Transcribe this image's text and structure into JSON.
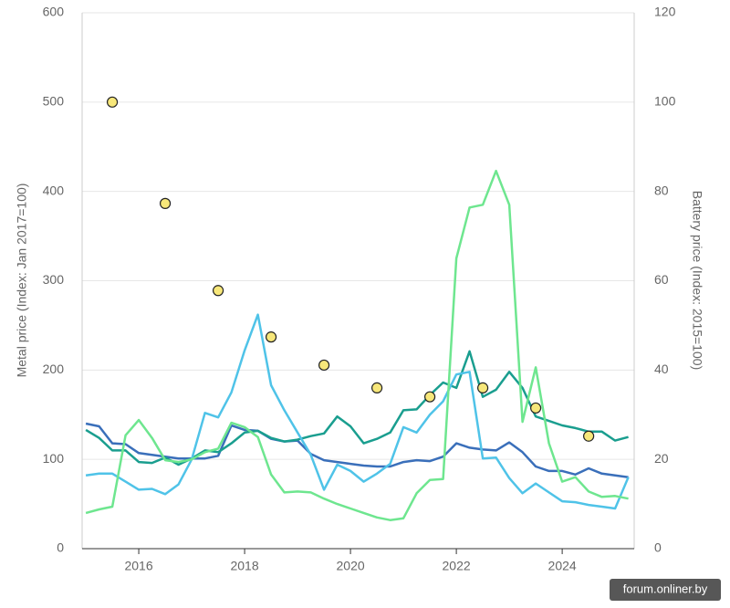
{
  "chart_data": {
    "type": "line",
    "y_label": "Metal price (Index: Jan 2017=100)",
    "y2_label": "Battery price (Index: 2015=100)",
    "watermark": "forum.onliner.by",
    "xlim": [
      2014.93,
      2025.36
    ],
    "xticks": [
      2016,
      2018,
      2020,
      2022,
      2024
    ],
    "ylim": [
      0,
      600
    ],
    "yticks": [
      0,
      100,
      200,
      300,
      400,
      500,
      600
    ],
    "y2lim": [
      0,
      120
    ],
    "y2ticks": [
      0,
      20,
      40,
      60,
      80,
      100,
      120
    ],
    "grid": true,
    "x": [
      2015,
      2015.25,
      2015.5,
      2015.75,
      2016,
      2016.25,
      2016.5,
      2016.75,
      2017,
      2017.25,
      2017.5,
      2017.75,
      2018,
      2018.25,
      2018.5,
      2018.75,
      2019,
      2019.25,
      2019.5,
      2019.75,
      2020,
      2020.25,
      2020.5,
      2020.75,
      2021,
      2021.25,
      2021.5,
      2021.75,
      2022,
      2022.25,
      2022.5,
      2022.75,
      2023,
      2023.25,
      2023.5,
      2023.75,
      2024,
      2024.25,
      2024.5,
      2024.75,
      2025,
      2025.25
    ],
    "series": [
      {
        "color": "#3a6fba",
        "values": [
          140,
          137,
          118,
          117,
          107,
          105,
          103,
          101,
          101,
          101,
          104,
          138,
          133,
          132,
          123,
          120,
          121,
          106,
          99,
          97,
          95,
          93,
          92,
          92,
          97,
          99,
          98,
          103,
          118,
          113,
          111,
          110,
          119,
          108,
          92,
          87,
          87,
          83,
          90,
          84,
          82,
          80
        ]
      },
      {
        "color": "#1a9e8f",
        "values": [
          133,
          124,
          110,
          110,
          97,
          96,
          102,
          94,
          101,
          110,
          108,
          118,
          130,
          132,
          124,
          120,
          122,
          126,
          129,
          148,
          137,
          118,
          123,
          130,
          155,
          156,
          172,
          186,
          180,
          221,
          170,
          178,
          198,
          180,
          148,
          143,
          138,
          135,
          131,
          131,
          121,
          125
        ]
      },
      {
        "color": "#4fc3e8",
        "values": [
          82,
          84,
          84,
          75,
          66,
          67,
          61,
          72,
          100,
          152,
          147,
          175,
          222,
          262,
          183,
          155,
          130,
          105,
          66,
          94,
          87,
          75,
          84,
          95,
          136,
          130,
          150,
          165,
          195,
          198,
          101,
          102,
          79,
          62,
          73,
          63,
          53,
          52,
          49,
          47,
          45,
          80
        ]
      },
      {
        "color": "#6ee68f",
        "values": [
          40,
          44,
          47,
          127,
          144,
          124,
          99,
          97,
          100,
          108,
          112,
          141,
          136,
          125,
          83,
          63,
          64,
          63,
          56,
          50,
          45,
          40,
          35,
          32,
          34,
          62,
          77,
          78,
          325,
          382,
          385,
          423,
          385,
          142,
          203,
          118,
          75,
          80,
          64,
          58,
          59,
          56
        ]
      },
      {
        "color": "#f7e77a",
        "mode": "markers",
        "axis": "y2",
        "x": [
          2015.5,
          2016.5,
          2017.5,
          2018.5,
          2019.5,
          2020.5,
          2021.5,
          2022.5,
          2023.5,
          2024.5
        ],
        "values": [
          100,
          77.3,
          57.8,
          47.4,
          41.1,
          36,
          34,
          36,
          31.5,
          25.2
        ]
      }
    ]
  }
}
